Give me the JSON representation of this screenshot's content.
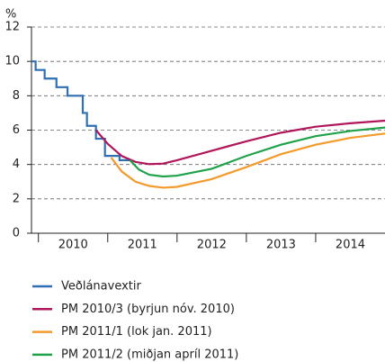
{
  "chart_data": {
    "type": "line",
    "y_unit_label": "%",
    "categories": [
      "2010",
      "2011",
      "2012",
      "2013",
      "2014"
    ],
    "xlim": [
      2009.9,
      2015.0
    ],
    "ylim": [
      0,
      12
    ],
    "yticks": [
      0,
      2,
      4,
      6,
      8,
      10,
      12
    ],
    "grid": true,
    "legend": "bottom",
    "series": [
      {
        "name": "Veðlánavextir",
        "color": "#2f6fb3",
        "step": true,
        "x": [
          2009.9,
          2009.96,
          2010.09,
          2010.26,
          2010.42,
          2010.64,
          2010.7,
          2010.83,
          2010.96,
          2011.17,
          2011.32
        ],
        "values": [
          10,
          9.5,
          9,
          8.5,
          8,
          7,
          6.25,
          5.5,
          4.5,
          4.25,
          4.25
        ]
      },
      {
        "name": "PM 2010/3 (byrjun nóv. 2010)",
        "color": "#b0175a",
        "x": [
          2010.83,
          2011.0,
          2011.2,
          2011.4,
          2011.6,
          2011.8,
          2012.0,
          2012.5,
          2013.0,
          2013.5,
          2014.0,
          2014.5,
          2015.0
        ],
        "values": [
          6.0,
          5.2,
          4.5,
          4.15,
          4.02,
          4.05,
          4.25,
          4.8,
          5.35,
          5.85,
          6.2,
          6.4,
          6.55
        ]
      },
      {
        "name": "PM 2011/1 (lok jan. 2011)",
        "color": "#f39a2b",
        "x": [
          2011.05,
          2011.2,
          2011.4,
          2011.6,
          2011.8,
          2012.0,
          2012.5,
          2013.0,
          2013.5,
          2014.0,
          2014.5,
          2015.0
        ],
        "values": [
          4.4,
          3.6,
          3.0,
          2.75,
          2.65,
          2.7,
          3.15,
          3.85,
          4.6,
          5.15,
          5.55,
          5.8
        ]
      },
      {
        "name": "PM 2011/2 (miðjan apríl 2011)",
        "color": "#1fa24a",
        "x": [
          2011.32,
          2011.45,
          2011.6,
          2011.8,
          2012.0,
          2012.5,
          2013.0,
          2013.5,
          2014.0,
          2014.5,
          2015.0
        ],
        "values": [
          4.25,
          3.7,
          3.4,
          3.3,
          3.35,
          3.75,
          4.5,
          5.15,
          5.65,
          5.95,
          6.15
        ]
      }
    ]
  }
}
